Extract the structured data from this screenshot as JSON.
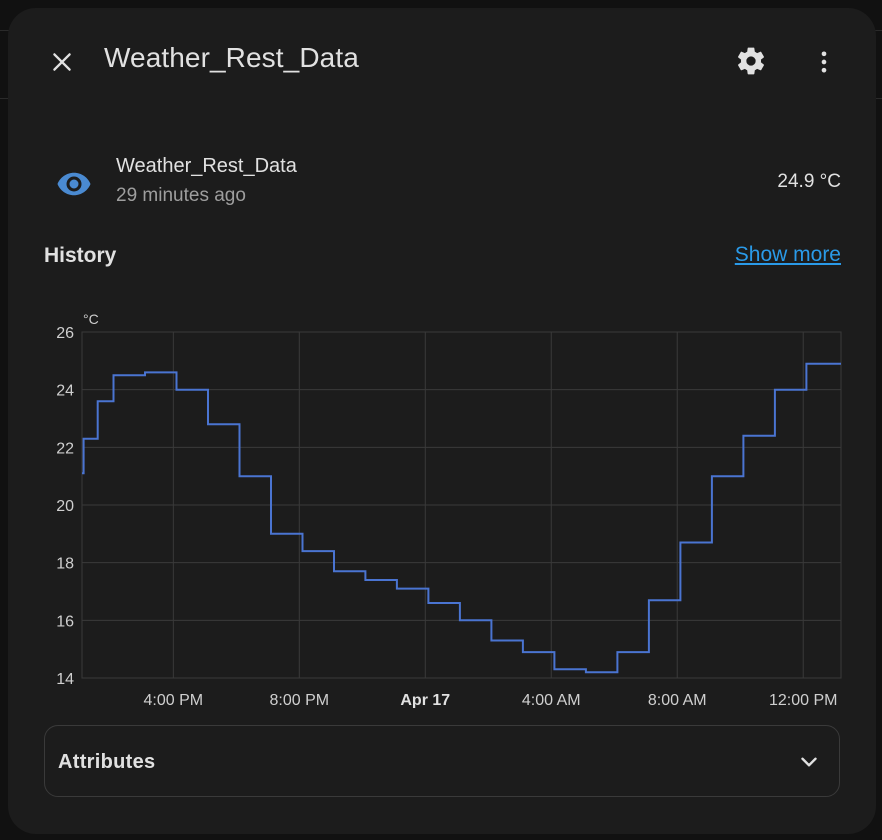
{
  "dialog": {
    "title": "Weather_Rest_Data",
    "icons": {
      "close": "close-icon",
      "settings": "gear-icon",
      "menu": "dots-vertical-icon"
    }
  },
  "entity": {
    "icon": "eye-icon",
    "icon_color": "#4a8ad1",
    "name": "Weather_Rest_Data",
    "last_changed": "29 minutes ago",
    "state": "24.9 °C"
  },
  "history": {
    "title": "History",
    "show_more_label": "Show more",
    "link_color": "#2a9ae8"
  },
  "attributes": {
    "label": "Attributes",
    "icon": "chevron-down-icon"
  },
  "chart_data": {
    "type": "line",
    "step": true,
    "title": "",
    "unit_label": "°C",
    "xlabel": "",
    "ylabel": "°C",
    "ylim": [
      14,
      26
    ],
    "yticks": [
      14,
      16,
      18,
      20,
      22,
      24,
      26
    ],
    "xlim": [
      13.1,
      37.2
    ],
    "x_unit": "hours since Apr 16 00:00",
    "xticks": [
      {
        "x": 16,
        "label": "4:00 PM",
        "bold": false
      },
      {
        "x": 20,
        "label": "8:00 PM",
        "bold": false
      },
      {
        "x": 24,
        "label": "Apr 17",
        "bold": true
      },
      {
        "x": 28,
        "label": "4:00 AM",
        "bold": false
      },
      {
        "x": 32,
        "label": "8:00 AM",
        "bold": false
      },
      {
        "x": 36,
        "label": "12:00 PM",
        "bold": false
      }
    ],
    "grid": true,
    "series_color": "#4a74d1",
    "series": [
      {
        "name": "Weather_Rest_Data",
        "x": [
          13.1,
          13.15,
          13.6,
          14.1,
          15.1,
          16.1,
          17.1,
          18.1,
          19.1,
          20.1,
          21.1,
          22.1,
          23.1,
          24.1,
          25.1,
          26.1,
          27.1,
          28.1,
          29.1,
          30.1,
          31.1,
          32.1,
          33.1,
          34.1,
          35.1,
          36.1,
          36.7,
          37.2
        ],
        "values": [
          21.1,
          22.3,
          23.6,
          24.5,
          24.6,
          24.0,
          22.8,
          21.0,
          19.0,
          18.4,
          17.7,
          17.4,
          17.1,
          16.6,
          16.0,
          15.3,
          14.9,
          14.3,
          14.2,
          14.9,
          16.7,
          18.7,
          21.0,
          22.4,
          24.0,
          24.9,
          24.9,
          24.9
        ]
      }
    ]
  }
}
